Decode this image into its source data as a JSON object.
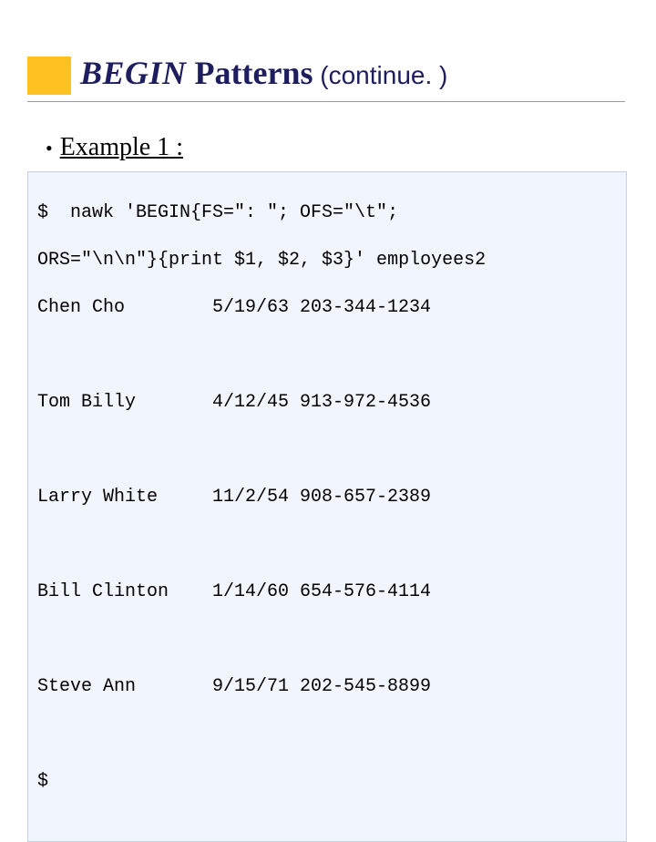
{
  "colors": {
    "accent": "#fec122",
    "title": "#1e1e5e",
    "underline": "#9a9a9a",
    "code_bg": "#f1f5fd",
    "code_border": "#c7cfe0",
    "text": "#000000"
  },
  "title": {
    "begin": "BEGIN",
    "patterns": " Patterns",
    "continue": " (continue. )"
  },
  "bullet": {
    "marker": "•",
    "text": "Example 1 :"
  },
  "code": {
    "prompt": "$",
    "command_line_1": "$  nawk 'BEGIN{FS=\": \"; OFS=\"\\t\";",
    "command_line_2": "ORS=\"\\n\\n\"}{print $1, $2, $3}' employees2",
    "rows": [
      {
        "name": "Chen Cho",
        "rest": "5/19/63 203-344-1234"
      },
      {
        "name": "Tom Billy",
        "rest": "4/12/45 913-972-4536"
      },
      {
        "name": "Larry White",
        "rest": "11/2/54 908-657-2389"
      },
      {
        "name": "Bill Clinton",
        "rest": "1/14/60 654-576-4114"
      },
      {
        "name": "Steve Ann",
        "rest": "9/15/71 202-545-8899"
      }
    ],
    "end_prompt": "$"
  }
}
